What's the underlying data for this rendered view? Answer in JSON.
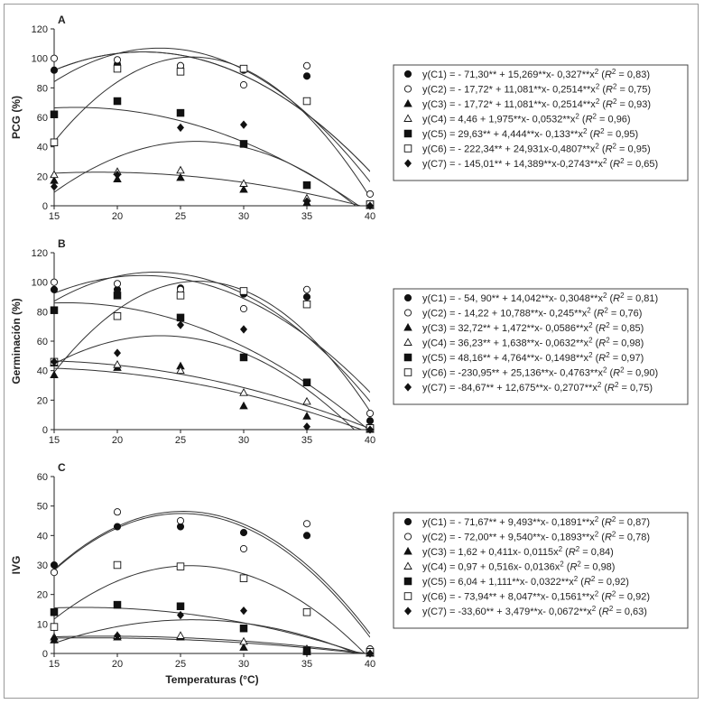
{
  "xlabel": "Temperaturas (°C)",
  "chart_data": [
    {
      "type": "scatter",
      "panel_label": "A",
      "ylabel": "PCG (%)",
      "ylim": [
        0,
        120
      ],
      "yticks": [
        0,
        20,
        40,
        60,
        80,
        100,
        120
      ],
      "x": [
        15,
        20,
        25,
        30,
        35,
        40
      ],
      "series": [
        {
          "marker": "filled-circle",
          "values": [
            92,
            96,
            95,
            92,
            88,
            1
          ],
          "coef": [
            -71.3,
            15.269,
            -0.327
          ],
          "equation": {
            "lhs": "y(C1) = ",
            "rhs": "- 71,30** + 15,269**x- 0,327**x",
            "r2": "0,83"
          }
        },
        {
          "marker": "open-circle",
          "values": [
            100,
            99,
            95,
            82,
            95,
            8
          ],
          "coef": [
            -17.72,
            11.081,
            -0.2514
          ],
          "equation": {
            "lhs": "y(C2) = ",
            "rhs": "- 17,72* + 11,081**x- 0,2514**x",
            "r2": "0,75"
          }
        },
        {
          "marker": "filled-triangle",
          "values": [
            17,
            18,
            19,
            11,
            2,
            0
          ],
          "coef": [
            -17.72,
            11.081,
            -0.2514
          ],
          "equation": {
            "lhs": "y(C3) = ",
            "rhs": "- 17,72* + 11,081**x- 0,2514**x",
            "r2": "0,93"
          }
        },
        {
          "marker": "open-triangle",
          "values": [
            21,
            23,
            24,
            15,
            5,
            0
          ],
          "coef": [
            4.46,
            1.975,
            -0.0532
          ],
          "equation": {
            "lhs": "y(C4) = ",
            "rhs": "4,46 + 1,975**x- 0,0532**x",
            "r2": "0,96"
          }
        },
        {
          "marker": "filled-square",
          "values": [
            62,
            71,
            63,
            42,
            14,
            1
          ],
          "coef": [
            29.63,
            4.444,
            -0.133
          ],
          "equation": {
            "lhs": "y(C5) = ",
            "rhs": "29,63** + 4,444**x- 0,133**x",
            "r2": "0,95"
          }
        },
        {
          "marker": "open-square",
          "values": [
            43,
            93,
            91,
            93,
            71,
            1
          ],
          "coef": [
            -222.34,
            24.931,
            -0.4807
          ],
          "equation": {
            "lhs": "y(C6) = ",
            "rhs": "- 222,34** + 24,931x-0,4807**x",
            "r2": "0,95"
          }
        },
        {
          "marker": "filled-diamond",
          "values": [
            13,
            21,
            53,
            55,
            3,
            0
          ],
          "coef": [
            -145.01,
            14.389,
            -0.2743
          ],
          "equation": {
            "lhs": "y(C7) = ",
            "rhs": "- 145,01** + 14,389**x-0,2743**x",
            "r2": "0,65"
          }
        }
      ]
    },
    {
      "type": "scatter",
      "panel_label": "B",
      "ylabel": "Germinación (%)",
      "ylim": [
        0,
        120
      ],
      "yticks": [
        0,
        20,
        40,
        60,
        80,
        100,
        120
      ],
      "x": [
        15,
        20,
        25,
        30,
        35,
        40
      ],
      "series": [
        {
          "marker": "filled-circle",
          "values": [
            95,
            95,
            96,
            92,
            90,
            6
          ],
          "coef": [
            -54.9,
            14.042,
            -0.3048
          ],
          "equation": {
            "lhs": "y(C1) = ",
            "rhs": "- 54, 90** + 14,042**x- 0,3048**x",
            "r2": "0,81"
          }
        },
        {
          "marker": "open-circle",
          "values": [
            100,
            99,
            95,
            82,
            95,
            11
          ],
          "coef": [
            -14.22,
            10.788,
            -0.245
          ],
          "equation": {
            "lhs": "y(C2) = ",
            "rhs": "- 14,22 + 10,788**x- 0,245**x",
            "r2": "0,76"
          }
        },
        {
          "marker": "filled-triangle",
          "values": [
            37,
            42,
            43,
            16,
            9,
            0
          ],
          "coef": [
            32.72,
            1.472,
            -0.0586
          ],
          "equation": {
            "lhs": "y(C3) = ",
            "rhs": "32,72** + 1,472**x- 0,0586**x",
            "r2": "0,85"
          }
        },
        {
          "marker": "open-triangle",
          "values": [
            45,
            44,
            40,
            25,
            19,
            2
          ],
          "coef": [
            36.23,
            1.638,
            -0.0632
          ],
          "equation": {
            "lhs": "y(C4) = ",
            "rhs": "36,23** + 1,638**x- 0,0632**x",
            "r2": "0,98"
          }
        },
        {
          "marker": "filled-square",
          "values": [
            81,
            91,
            76,
            49,
            32,
            1
          ],
          "coef": [
            48.16,
            4.764,
            -0.1498
          ],
          "equation": {
            "lhs": "y(C5) = ",
            "rhs": "48,16** + 4,764**x- 0,1498**x",
            "r2": "0,97"
          }
        },
        {
          "marker": "open-square",
          "values": [
            46,
            77,
            91,
            94,
            85,
            1
          ],
          "coef": [
            -230.95,
            25.136,
            -0.4763
          ],
          "equation": {
            "lhs": "y(C6) = ",
            "rhs": "-230,95** + 25,136**x- 0,4763**x",
            "r2": "0,90"
          }
        },
        {
          "marker": "filled-diamond",
          "values": [
            46,
            52,
            71,
            68,
            2,
            0
          ],
          "coef": [
            -84.67,
            12.675,
            -0.2707
          ],
          "equation": {
            "lhs": "y(C7) = ",
            "rhs": "-84,67** + 12,675**x- 0,2707**x",
            "r2": "0,75"
          }
        }
      ]
    },
    {
      "type": "scatter",
      "panel_label": "C",
      "ylabel": "IVG",
      "ylim": [
        0,
        60
      ],
      "yticks": [
        0,
        10,
        20,
        30,
        40,
        50,
        60
      ],
      "x": [
        15,
        20,
        25,
        30,
        35,
        40
      ],
      "series": [
        {
          "marker": "filled-circle",
          "values": [
            30,
            43,
            43,
            41,
            40,
            0.5
          ],
          "coef": [
            -71.67,
            9.493,
            -0.1891
          ],
          "equation": {
            "lhs": "y(C1) = ",
            "rhs": "- 71,67** + 9,493**x- 0,1891**x",
            "r2": "0,87"
          }
        },
        {
          "marker": "open-circle",
          "values": [
            27.5,
            48,
            45,
            35.5,
            44,
            1.5
          ],
          "coef": [
            -72.0,
            9.54,
            -0.1893
          ],
          "equation": {
            "lhs": "y(C2) = ",
            "rhs": "- 72,00** + 9,540**x- 0,1893**x",
            "r2": "0,78"
          }
        },
        {
          "marker": "filled-triangle",
          "values": [
            4.5,
            5.5,
            5.5,
            2,
            0.5,
            0
          ],
          "coef": [
            1.62,
            0.411,
            -0.0115
          ],
          "equation": {
            "lhs": "y(C3) = ",
            "rhs": "1,62 + 0,411x- 0,0115x",
            "r2": "0,84",
            "r2_symbol": "R"
          }
        },
        {
          "marker": "open-triangle",
          "values": [
            5.5,
            6,
            6,
            4,
            1.5,
            0
          ],
          "coef": [
            0.97,
            0.516,
            -0.0136
          ],
          "equation": {
            "lhs": "y(C4) = ",
            "rhs": "0,97 + 0,516x- 0,0136x",
            "r2": "0,98"
          }
        },
        {
          "marker": "filled-square",
          "values": [
            14,
            16.5,
            16,
            8.5,
            1,
            0.5
          ],
          "coef": [
            6.04,
            1.111,
            -0.0322
          ],
          "equation": {
            "lhs": "y(C5) = ",
            "rhs": "6,04 + 1,111**x- 0,0322**x",
            "r2": "0,92"
          }
        },
        {
          "marker": "open-square",
          "values": [
            9,
            30,
            29.5,
            25.5,
            14,
            0.5
          ],
          "coef": [
            -73.94,
            8.047,
            -0.1561
          ],
          "equation": {
            "lhs": "y(C6) = ",
            "rhs": "- 73,94** + 8,047**x- 0,1561**x",
            "r2": "0,92"
          }
        },
        {
          "marker": "filled-diamond",
          "values": [
            5,
            6,
            13,
            14.5,
            0.5,
            0
          ],
          "coef": [
            -33.6,
            3.479,
            -0.0672
          ],
          "equation": {
            "lhs": "y(C7) = ",
            "rhs": "-33,60** + 3,479**x- 0,0672**x",
            "r2": "0,63"
          }
        }
      ]
    }
  ]
}
